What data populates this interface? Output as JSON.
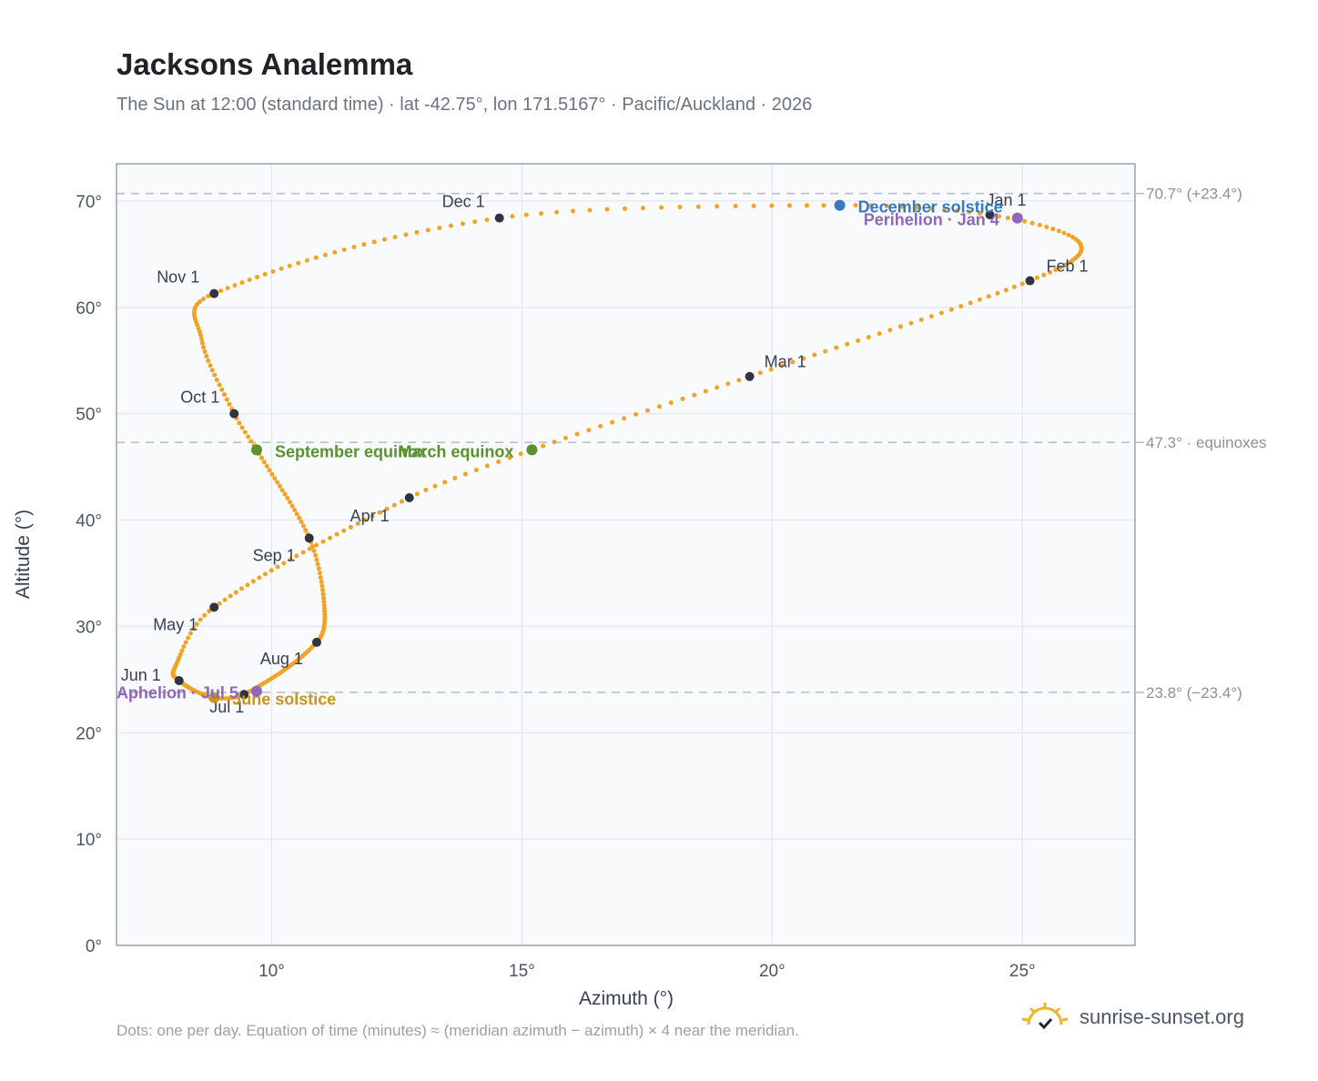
{
  "title": "Jacksons Analemma",
  "subtitle": "The Sun at 12:00 (standard time) · lat -42.75°, lon 171.5167° · Pacific/Auckland · 2026",
  "footnote": "Dots: one per day. Equation of time (minutes) ≈ (meridian azimuth − azimuth) × 4 near the meridian.",
  "brand": {
    "name": "sunrise-sunset.org",
    "icon": "sun-check-icon",
    "icon_color": "#f0b429"
  },
  "colors": {
    "curve": "#f2a326",
    "month_dot": "#2f3540",
    "equinox": "#5a922e",
    "solstice_dec": "#3a78c2",
    "solstice_jun": "#c9961a",
    "apsis": "#8f66b8",
    "grid": "#e3e8ee",
    "plot_bg": "#f8fafc",
    "frame": "#9aa3b0"
  },
  "chart_data": {
    "type": "scatter",
    "xlabel": "Azimuth (°)",
    "ylabel": "Altitude (°)",
    "xlim": [
      6.9,
      27.25
    ],
    "ylim": [
      0,
      73.5
    ],
    "x_ticks": [
      10,
      15,
      20,
      25
    ],
    "x_tick_labels": [
      "10°",
      "15°",
      "20°",
      "25°"
    ],
    "y_ticks": [
      0,
      10,
      20,
      30,
      40,
      50,
      60,
      70
    ],
    "y_tick_labels": [
      "0°",
      "10°",
      "20°",
      "30°",
      "40°",
      "50°",
      "60°",
      "70°"
    ],
    "grid": true,
    "reference_lines": [
      {
        "y": 70.7,
        "label": "70.7° (+23.4°)"
      },
      {
        "y": 47.3,
        "label": "47.3° · equinoxes"
      },
      {
        "y": 23.8,
        "label": "23.8° (−23.4°)"
      }
    ],
    "month_points": [
      {
        "label": "Jan 1",
        "doy": 1,
        "x": 24.35,
        "y": 68.7
      },
      {
        "label": "Feb 1",
        "doy": 32,
        "x": 25.15,
        "y": 62.5
      },
      {
        "label": "Mar 1",
        "doy": 60,
        "x": 19.55,
        "y": 53.5
      },
      {
        "label": "Apr 1",
        "doy": 91,
        "x": 12.75,
        "y": 42.1
      },
      {
        "label": "May 1",
        "doy": 121,
        "x": 8.85,
        "y": 31.8
      },
      {
        "label": "Jun 1",
        "doy": 152,
        "x": 8.15,
        "y": 24.9
      },
      {
        "label": "Jul 1",
        "doy": 182,
        "x": 9.45,
        "y": 23.6
      },
      {
        "label": "Aug 1",
        "doy": 213,
        "x": 10.9,
        "y": 28.5
      },
      {
        "label": "Sep 1",
        "doy": 244,
        "x": 10.75,
        "y": 38.3
      },
      {
        "label": "Oct 1",
        "doy": 274,
        "x": 9.25,
        "y": 50.0
      },
      {
        "label": "Nov 1",
        "doy": 305,
        "x": 8.85,
        "y": 61.3
      },
      {
        "label": "Dec 1",
        "doy": 335,
        "x": 14.55,
        "y": 68.4
      }
    ],
    "events": [
      {
        "label": "December solstice",
        "doy": 355,
        "x": 21.35,
        "y": 69.6,
        "kind": "dec"
      },
      {
        "label": "Perihelion · Jan 4",
        "doy": 4,
        "x": 24.9,
        "y": 68.4,
        "kind": "apsis"
      },
      {
        "label": "March equinox",
        "doy": 79,
        "x": 15.2,
        "y": 46.6,
        "kind": "equinox"
      },
      {
        "label": "September equinox",
        "doy": 266,
        "x": 9.7,
        "y": 46.6,
        "kind": "equinox"
      },
      {
        "label": "June solstice",
        "doy": 172,
        "x": 8.85,
        "y": 23.3,
        "kind": "jun"
      },
      {
        "label": "Aphelion · Jul 5",
        "doy": 186,
        "x": 9.7,
        "y": 23.9,
        "kind": "apsis"
      }
    ],
    "extreme_east": {
      "doy": 16,
      "x": 26.15,
      "y": 66.0
    },
    "extreme_west": {
      "doy": 135,
      "x": 8.1,
      "y": 26.5
    },
    "extreme_east_aug": {
      "doy": 228,
      "x": 11.05,
      "y": 32.0
    },
    "extreme_west_oct": {
      "doy": 290,
      "x": 8.6,
      "y": 57.0
    },
    "series": [
      {
        "values_per_day": 365
      }
    ]
  }
}
